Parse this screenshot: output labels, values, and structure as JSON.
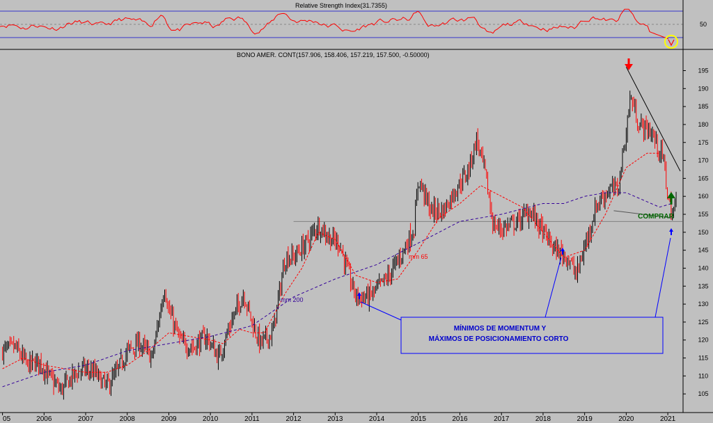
{
  "rsi_panel": {
    "title": "Relative Strength Index(31.7355)",
    "ticks": [
      "50"
    ],
    "upper": 70,
    "mid": 50,
    "lower": 30,
    "color": "#ff0000"
  },
  "chart_data": {
    "type": "candlestick",
    "title": "BONO AMER. CONT(157.906, 158.406, 157.219, 157.500, -0.50000)",
    "x_ticks": [
      "05",
      "2006",
      "2007",
      "2008",
      "2009",
      "2010",
      "2011",
      "2012",
      "2013",
      "2014",
      "2015",
      "2016",
      "2017",
      "2018",
      "2019",
      "2020",
      "2021"
    ],
    "y_ticks": [
      "105",
      "110",
      "115",
      "120",
      "125",
      "130",
      "135",
      "140",
      "145",
      "150",
      "155",
      "160",
      "165",
      "170",
      "175",
      "180",
      "185",
      "190",
      "195"
    ],
    "ylim": [
      100,
      198
    ],
    "price_path": [
      [
        2005.0,
        117
      ],
      [
        2005.3,
        118
      ],
      [
        2005.6,
        113
      ],
      [
        2005.9,
        114
      ],
      [
        2006.1,
        110
      ],
      [
        2006.4,
        106
      ],
      [
        2006.7,
        110
      ],
      [
        2006.9,
        112
      ],
      [
        2007.2,
        111
      ],
      [
        2007.5,
        107
      ],
      [
        2007.7,
        110
      ],
      [
        2008.0,
        117
      ],
      [
        2008.3,
        119
      ],
      [
        2008.6,
        115
      ],
      [
        2008.9,
        135
      ],
      [
        2009.0,
        128
      ],
      [
        2009.3,
        119
      ],
      [
        2009.6,
        118
      ],
      [
        2009.9,
        121
      ],
      [
        2010.2,
        115
      ],
      [
        2010.5,
        125
      ],
      [
        2010.8,
        133
      ],
      [
        2011.0,
        125
      ],
      [
        2011.2,
        119
      ],
      [
        2011.5,
        122
      ],
      [
        2011.8,
        143
      ],
      [
        2012.0,
        143
      ],
      [
        2012.3,
        147
      ],
      [
        2012.6,
        152
      ],
      [
        2012.9,
        148
      ],
      [
        2013.1,
        147
      ],
      [
        2013.3,
        139
      ],
      [
        2013.5,
        132
      ],
      [
        2013.8,
        132
      ],
      [
        2014.0,
        134
      ],
      [
        2014.3,
        138
      ],
      [
        2014.6,
        144
      ],
      [
        2014.9,
        151
      ],
      [
        2015.0,
        165
      ],
      [
        2015.3,
        156
      ],
      [
        2015.6,
        156
      ],
      [
        2015.9,
        162
      ],
      [
        2016.2,
        167
      ],
      [
        2016.4,
        176
      ],
      [
        2016.6,
        167
      ],
      [
        2016.8,
        152
      ],
      [
        2017.0,
        151
      ],
      [
        2017.4,
        153
      ],
      [
        2017.7,
        156
      ],
      [
        2018.0,
        150
      ],
      [
        2018.3,
        145
      ],
      [
        2018.6,
        143
      ],
      [
        2018.8,
        138
      ],
      [
        2019.0,
        146
      ],
      [
        2019.3,
        158
      ],
      [
        2019.6,
        162
      ],
      [
        2019.8,
        162
      ],
      [
        2020.0,
        178
      ],
      [
        2020.1,
        188
      ],
      [
        2020.3,
        180
      ],
      [
        2020.6,
        178
      ],
      [
        2020.9,
        170
      ],
      [
        2021.0,
        160
      ],
      [
        2021.1,
        155
      ],
      [
        2021.2,
        158
      ]
    ],
    "series": [
      {
        "name": "mm 65",
        "color": "#ff0000",
        "dash": "3,2",
        "points": [
          [
            2005.0,
            112
          ],
          [
            2005.5,
            115
          ],
          [
            2006.0,
            113
          ],
          [
            2006.5,
            112
          ],
          [
            2007.0,
            111
          ],
          [
            2007.5,
            111
          ],
          [
            2008.0,
            113
          ],
          [
            2008.5,
            117
          ],
          [
            2009.0,
            122
          ],
          [
            2009.5,
            121
          ],
          [
            2010.0,
            120
          ],
          [
            2010.3,
            119
          ],
          [
            2010.7,
            123
          ],
          [
            2011.0,
            122
          ],
          [
            2011.3,
            122
          ],
          [
            2011.8,
            133
          ],
          [
            2012.2,
            140
          ],
          [
            2012.6,
            150
          ],
          [
            2013.0,
            148
          ],
          [
            2013.5,
            138
          ],
          [
            2014.0,
            136
          ],
          [
            2014.5,
            137
          ],
          [
            2015.0,
            145
          ],
          [
            2015.5,
            154
          ],
          [
            2016.0,
            158
          ],
          [
            2016.5,
            163
          ],
          [
            2017.0,
            160
          ],
          [
            2017.5,
            157
          ],
          [
            2018.0,
            150
          ],
          [
            2018.5,
            143
          ],
          [
            2019.0,
            145
          ],
          [
            2019.5,
            155
          ],
          [
            2020.0,
            168
          ],
          [
            2020.5,
            172
          ],
          [
            2020.8,
            172
          ]
        ]
      },
      {
        "name": "mm 200",
        "color": "#330099",
        "dash": "4,3",
        "points": [
          [
            2005.0,
            107
          ],
          [
            2006.0,
            111
          ],
          [
            2007.0,
            113
          ],
          [
            2008.0,
            117
          ],
          [
            2009.0,
            119
          ],
          [
            2010.0,
            121
          ],
          [
            2011.0,
            124
          ],
          [
            2012.0,
            132
          ],
          [
            2013.0,
            137
          ],
          [
            2014.0,
            141
          ],
          [
            2015.0,
            147
          ],
          [
            2016.0,
            153
          ],
          [
            2017.0,
            155
          ],
          [
            2018.0,
            158
          ],
          [
            2018.5,
            158
          ],
          [
            2019.0,
            160
          ],
          [
            2019.5,
            161
          ],
          [
            2020.0,
            161
          ],
          [
            2020.8,
            157
          ],
          [
            2021.1,
            158
          ]
        ]
      }
    ],
    "support_level": 153,
    "trendline": {
      "from": [
        2020.0,
        196
      ],
      "to": [
        2021.3,
        167
      ]
    },
    "support_trend": {
      "from": [
        2019.7,
        156
      ],
      "to": [
        2021.1,
        154
      ]
    },
    "annotations": {
      "comprar": "COMPRAR",
      "label_mm65": "mm 65",
      "label_mm200": "mm 200",
      "note_line1": "MÍNIMOS DE MOMENTUM Y",
      "note_line2": "MÁXIMOS DE POSICIONAMIENTO CORTO"
    },
    "colors": {
      "up": "#000000",
      "down": "#ff0000",
      "support": "#808080"
    }
  }
}
